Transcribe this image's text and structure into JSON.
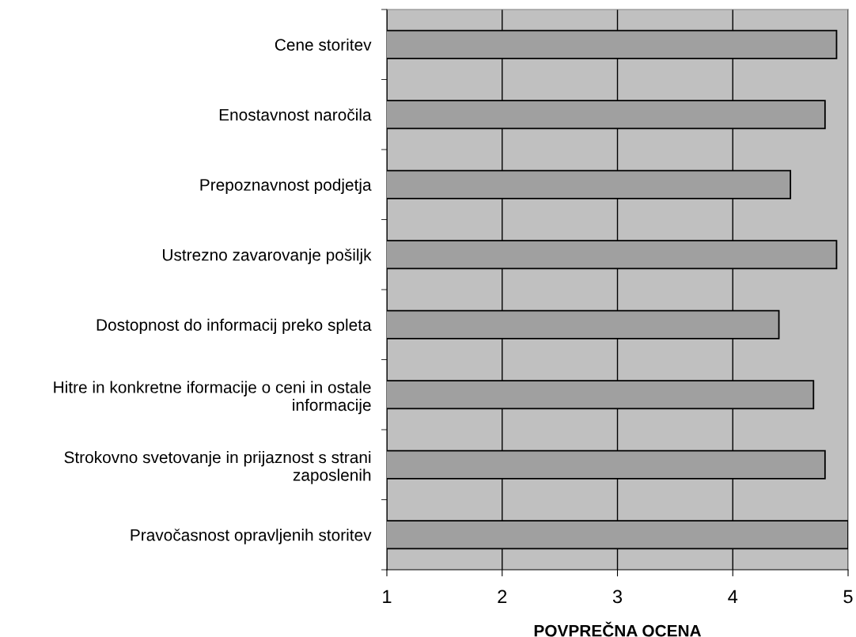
{
  "chart_data": {
    "type": "bar",
    "orientation": "horizontal",
    "xlabel": "POVPREČNA OCENA",
    "categories": [
      "Cene storitev",
      "Enostavnost naročila",
      "Prepoznavnost podjetja",
      "Ustrezno zavarovanje pošiljk",
      "Dostopnost do informacij preko spleta",
      "Hitre in konkretne iformacije o ceni in ostale\ninformacije",
      "Strokovno svetovanje in prijaznost s strani\nzaposlenih",
      "Pravočasnost opravljenih storitev"
    ],
    "values": [
      4.9,
      4.8,
      4.5,
      4.9,
      4.4,
      4.7,
      4.8,
      5.0
    ],
    "color": "#a0a0a0",
    "xlim": [
      1,
      5
    ],
    "xticks": [
      1,
      2,
      3,
      4,
      5
    ],
    "grid": "x"
  }
}
